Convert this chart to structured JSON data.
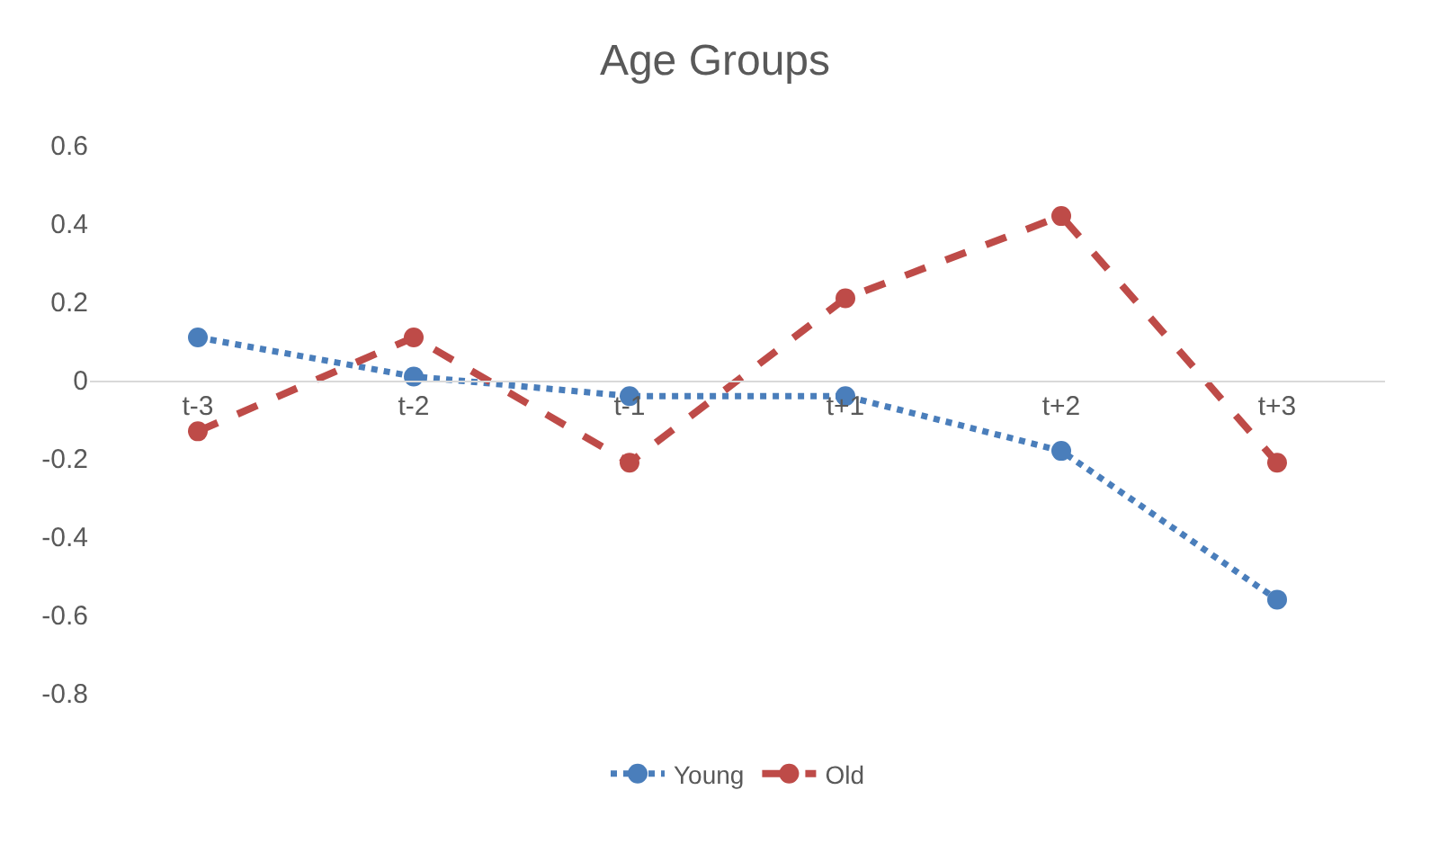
{
  "chart_data": {
    "type": "line",
    "title": "Age Groups",
    "categories": [
      "t-3",
      "t-2",
      "t-1",
      "t+1",
      "t+2",
      "t+3"
    ],
    "series": [
      {
        "name": "Young",
        "color": "#4a7ebb",
        "line_style": "dotted",
        "values": [
          0.11,
          0.01,
          -0.04,
          -0.04,
          -0.18,
          -0.56
        ]
      },
      {
        "name": "Old",
        "color": "#be4b48",
        "line_style": "dashed",
        "values": [
          -0.13,
          0.11,
          -0.21,
          0.21,
          0.42,
          -0.21
        ]
      }
    ],
    "ylim": [
      -0.8,
      0.6
    ],
    "yticks": [
      -0.8,
      -0.6,
      -0.4,
      -0.2,
      0,
      0.2,
      0.4,
      0.6
    ],
    "grid": false,
    "legend": "bottom",
    "marker": "circle"
  }
}
